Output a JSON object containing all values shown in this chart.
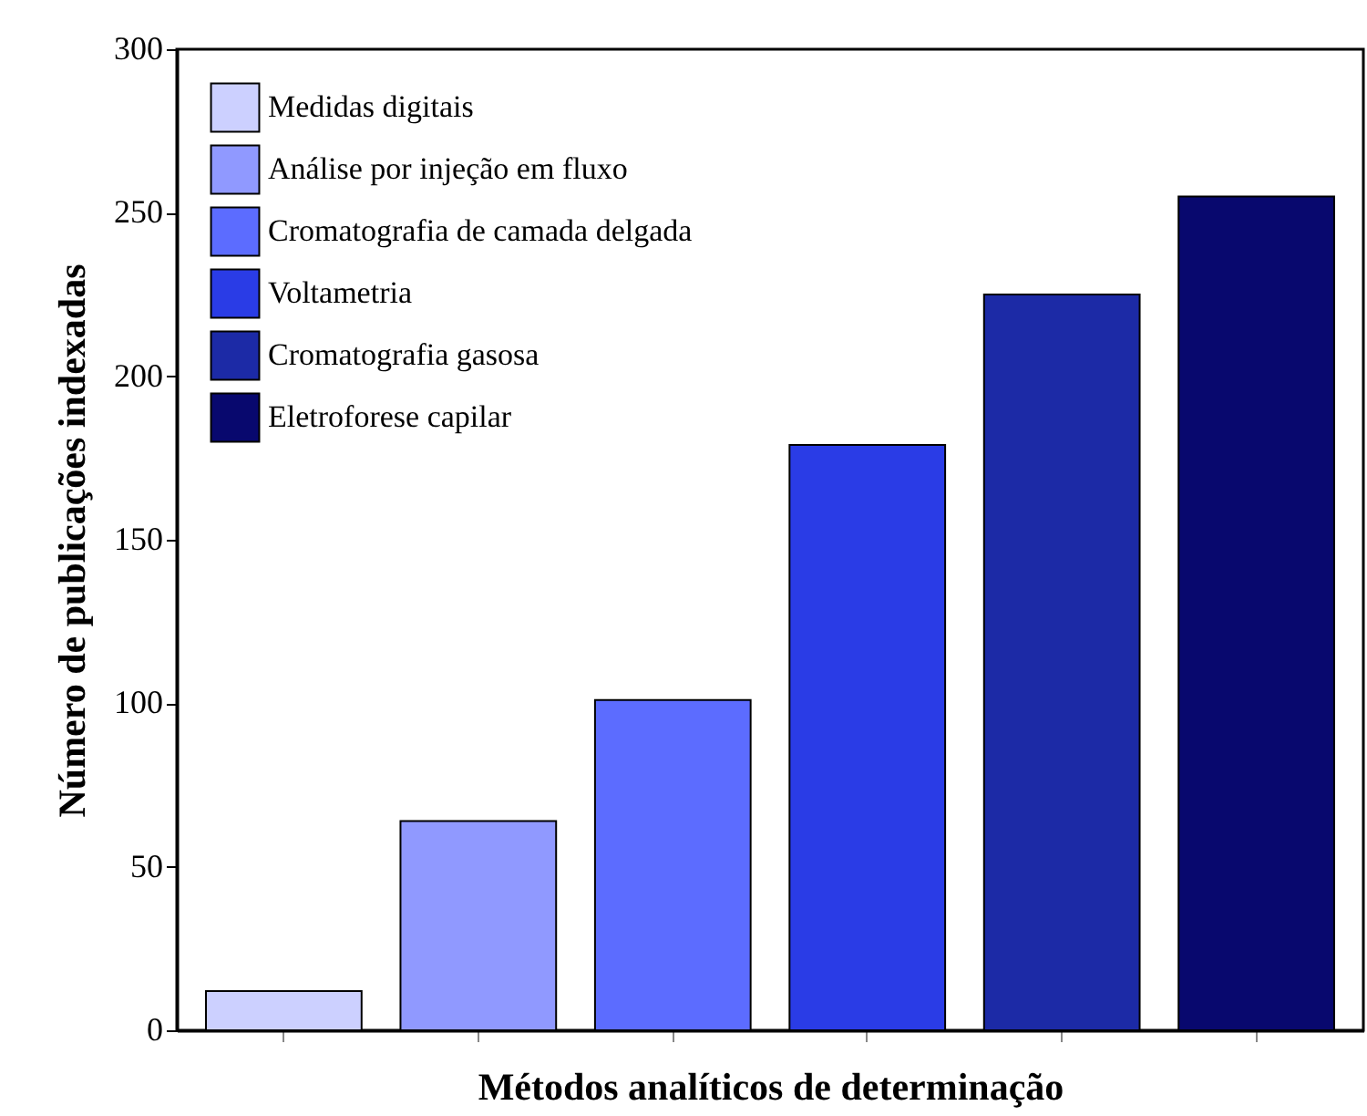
{
  "chart_data": {
    "type": "bar",
    "xlabel": "Métodos analíticos de determinação",
    "ylabel": "Número de publicações indexadas",
    "categories": [
      null,
      null,
      null,
      null,
      null,
      null
    ],
    "series": [
      {
        "name": "Medidas digitais",
        "color": "#ccd0ff",
        "values": [
          12,
          null,
          null,
          null,
          null,
          null
        ]
      },
      {
        "name": "Análise por injeção em fluxo",
        "color": "#9099ff",
        "values": [
          null,
          64,
          null,
          null,
          null,
          null
        ]
      },
      {
        "name": "Cromatografia de camada delgada",
        "color": "#5c6cff",
        "values": [
          null,
          null,
          101,
          null,
          null,
          null
        ]
      },
      {
        "name": "Voltametria",
        "color": "#2a3ce6",
        "values": [
          null,
          null,
          null,
          179,
          null,
          null
        ]
      },
      {
        "name": "Cromatografia gasosa",
        "color": "#1c2aa6",
        "values": [
          null,
          null,
          null,
          null,
          225,
          null
        ]
      },
      {
        "name": "Eletroforese capilar",
        "color": "#08086e",
        "values": [
          null,
          null,
          null,
          null,
          null,
          255
        ]
      }
    ],
    "ylim": [
      0,
      300
    ],
    "yticks": [
      0,
      50,
      100,
      150,
      200,
      250,
      300
    ],
    "grid": false,
    "legend": "top left",
    "tick_labels": "y"
  }
}
